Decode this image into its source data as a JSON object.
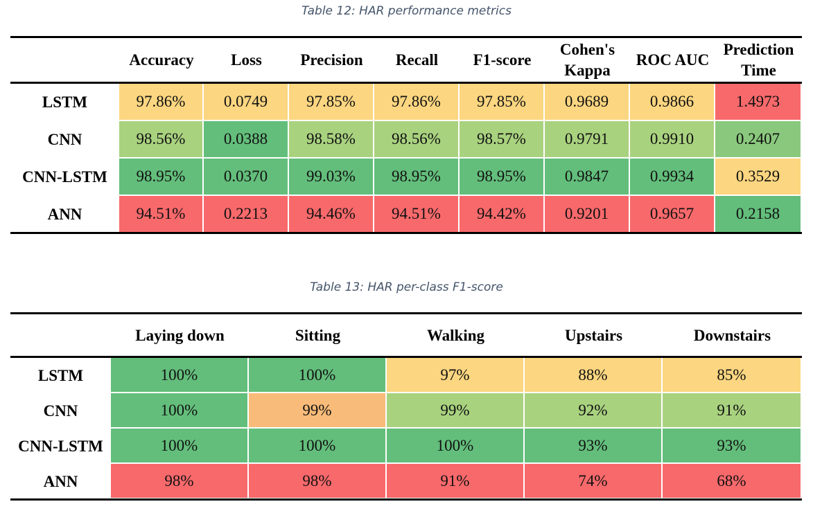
{
  "table12": {
    "caption": "Table 12: HAR performance metrics",
    "columns": [
      "Accuracy",
      "Loss",
      "Precision",
      "Recall",
      "F1-score",
      "Cohen's Kappa",
      "ROC AUC",
      "Prediction Time"
    ],
    "rows": [
      {
        "label": "LSTM",
        "values": [
          "97.86%",
          "0.0749",
          "97.85%",
          "97.86%",
          "97.85%",
          "0.9689",
          "0.9866",
          "1.4973"
        ],
        "colors": [
          "#fcd680",
          "#fcd680",
          "#fcd680",
          "#fcd680",
          "#fcd680",
          "#fcd680",
          "#fcd680",
          "#f8696b"
        ]
      },
      {
        "label": "CNN",
        "values": [
          "98.56%",
          "0.0388",
          "98.58%",
          "98.56%",
          "98.57%",
          "0.9791",
          "0.9910",
          "0.2407"
        ],
        "colors": [
          "#a9d27f",
          "#63be7b",
          "#a9d27f",
          "#a9d27f",
          "#a9d27f",
          "#a9d27f",
          "#a9d27f",
          "#8ac97d"
        ]
      },
      {
        "label": "CNN-LSTM",
        "values": [
          "98.95%",
          "0.0370",
          "99.03%",
          "98.95%",
          "98.95%",
          "0.9847",
          "0.9934",
          "0.3529"
        ],
        "colors": [
          "#63be7b",
          "#63be7b",
          "#63be7b",
          "#63be7b",
          "#63be7b",
          "#63be7b",
          "#63be7b",
          "#fcd680"
        ]
      },
      {
        "label": "ANN",
        "values": [
          "94.51%",
          "0.2213",
          "94.46%",
          "94.51%",
          "94.42%",
          "0.9201",
          "0.9657",
          "0.2158"
        ],
        "colors": [
          "#f8696b",
          "#f8696b",
          "#f8696b",
          "#f8696b",
          "#f8696b",
          "#f8696b",
          "#f8696b",
          "#63be7b"
        ]
      }
    ]
  },
  "table13": {
    "caption": "Table 13: HAR per-class F1-score",
    "columns": [
      "Laying down",
      "Sitting",
      "Walking",
      "Upstairs",
      "Downstairs"
    ],
    "rows": [
      {
        "label": "LSTM",
        "values": [
          "100%",
          "100%",
          "97%",
          "88%",
          "85%"
        ],
        "colors": [
          "#63be7b",
          "#63be7b",
          "#fcd680",
          "#fcd680",
          "#fcd680"
        ]
      },
      {
        "label": "CNN",
        "values": [
          "100%",
          "99%",
          "99%",
          "92%",
          "91%"
        ],
        "colors": [
          "#63be7b",
          "#f8bb79",
          "#a9d27f",
          "#a9d27f",
          "#a9d27f"
        ]
      },
      {
        "label": "CNN-LSTM",
        "values": [
          "100%",
          "100%",
          "100%",
          "93%",
          "93%"
        ],
        "colors": [
          "#63be7b",
          "#63be7b",
          "#63be7b",
          "#63be7b",
          "#63be7b"
        ]
      },
      {
        "label": "ANN",
        "values": [
          "98%",
          "98%",
          "91%",
          "74%",
          "68%"
        ],
        "colors": [
          "#f8696b",
          "#f8696b",
          "#f8696b",
          "#f8696b",
          "#f8696b"
        ]
      }
    ]
  }
}
